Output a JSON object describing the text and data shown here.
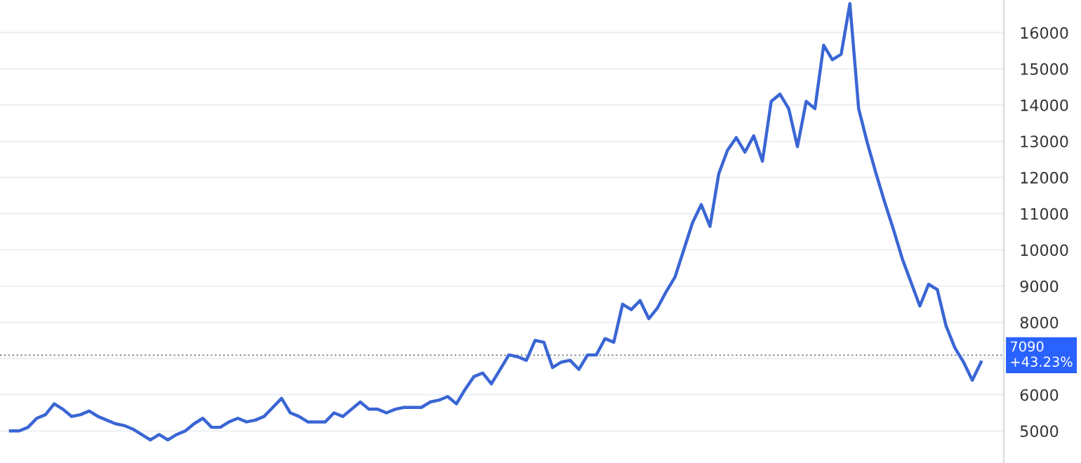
{
  "chart_data": {
    "type": "line",
    "categories": [
      null,
      null,
      null,
      null,
      null,
      null,
      null,
      null,
      null,
      null,
      null,
      null,
      null,
      null,
      null,
      null,
      null,
      null,
      null,
      null,
      null,
      null,
      null,
      null,
      null,
      null,
      null,
      null,
      null,
      null,
      null,
      null,
      null,
      null,
      null,
      null,
      null,
      null,
      null,
      null,
      null,
      null,
      null,
      null,
      null,
      null,
      null,
      null,
      null,
      null,
      null,
      null,
      null,
      null,
      null,
      null,
      null,
      null,
      null,
      null,
      null,
      null,
      null,
      null,
      null,
      null,
      null,
      null,
      null,
      null,
      null,
      null,
      null,
      null,
      null,
      null,
      null,
      null,
      null,
      null,
      null,
      null,
      null,
      null,
      null,
      null,
      null,
      null,
      null,
      null,
      null,
      null,
      null,
      null,
      null,
      null,
      null,
      null,
      null,
      null,
      null,
      null,
      null,
      null,
      null,
      null,
      null,
      null,
      null,
      null,
      null,
      null
    ],
    "series": [
      {
        "color": "#3a66d4",
        "values": [
          5000,
          5000,
          5100,
          5350,
          5450,
          5750,
          5600,
          5400,
          5450,
          5550,
          5400,
          5300,
          5200,
          5150,
          5050,
          4900,
          4750,
          4900,
          4750,
          4900,
          5000,
          5200,
          5350,
          5100,
          5100,
          5250,
          5350,
          5250,
          5300,
          5400,
          5650,
          5900,
          5500,
          5400,
          5250,
          5250,
          5250,
          5500,
          5400,
          5600,
          5800,
          5600,
          5600,
          5500,
          5600,
          5650,
          5650,
          5650,
          5800,
          5850,
          5950,
          5750,
          6150,
          6500,
          6600,
          6300,
          6700,
          7100,
          7050,
          6950,
          7500,
          7450,
          6750,
          6900,
          6950,
          6700,
          7100,
          7100,
          7550,
          7450,
          8500,
          8350,
          8600,
          8100,
          8400,
          8850,
          9250,
          10000,
          10750,
          11250,
          10650,
          12100,
          12750,
          13100,
          12700,
          13150,
          12450,
          14100,
          14300,
          13900,
          12850,
          14100,
          13900,
          15650,
          15250,
          15400,
          16800,
          13900,
          12950,
          12100,
          11300,
          10550,
          9750,
          9100,
          8450,
          9050,
          8900,
          7900,
          7300,
          6900,
          6400,
          6900
        ]
      }
    ],
    "ylim": [
      4115,
      16900
    ],
    "yticks": [
      5000,
      6000,
      {
        "value": 7000,
        "label": null
      },
      8000,
      9000,
      10000,
      11000,
      12000,
      13000,
      14000,
      15000,
      16000
    ],
    "ref_lines": [
      {
        "axis": "y",
        "value": 7090,
        "label": "7090\n+43.23%",
        "color": "#8a8f99",
        "line_style": "dotted"
      }
    ],
    "grid": "y",
    "marker": "none",
    "line_style": "solid"
  }
}
